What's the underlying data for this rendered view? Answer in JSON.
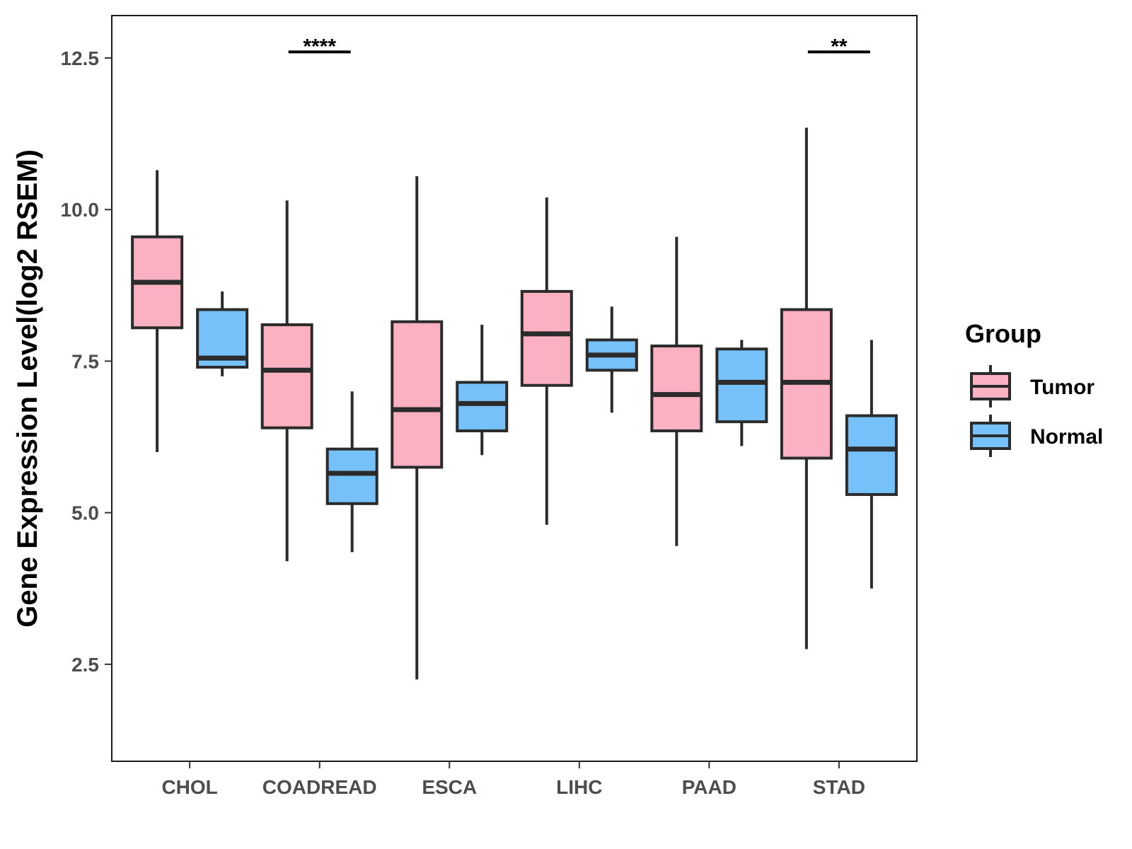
{
  "chart_data": {
    "type": "boxplot",
    "title": "",
    "xlabel": "",
    "ylabel": "Gene Expression Level(log2 RSEM)",
    "ylim": [
      0.9,
      13.2
    ],
    "yticks": [
      2.5,
      5.0,
      7.5,
      10.0,
      12.5
    ],
    "ytick_labels": [
      "2.5",
      "5.0",
      "7.5",
      "10.0",
      "12.5"
    ],
    "grid": false,
    "legend": {
      "title": "Group",
      "position": "right",
      "entries": [
        {
          "name": "Tumor",
          "color": "#FBB1C2"
        },
        {
          "name": "Normal",
          "color": "#76C1F9"
        }
      ]
    },
    "categories": [
      "CHOL",
      "COADREAD",
      "ESCA",
      "LIHC",
      "PAAD",
      "STAD"
    ],
    "series": [
      {
        "name": "Tumor",
        "color": "#FBB1C2",
        "boxes": [
          {
            "min": 6.0,
            "q1": 8.05,
            "median": 8.8,
            "q3": 9.55,
            "max": 10.65
          },
          {
            "min": 4.2,
            "q1": 6.4,
            "median": 7.35,
            "q3": 8.1,
            "max": 10.15
          },
          {
            "min": 2.25,
            "q1": 5.75,
            "median": 6.7,
            "q3": 8.15,
            "max": 10.55
          },
          {
            "min": 4.8,
            "q1": 7.1,
            "median": 7.95,
            "q3": 8.65,
            "max": 10.2
          },
          {
            "min": 4.45,
            "q1": 6.35,
            "median": 6.95,
            "q3": 7.75,
            "max": 9.55
          },
          {
            "min": 2.75,
            "q1": 5.9,
            "median": 7.15,
            "q3": 8.35,
            "max": 11.35
          }
        ]
      },
      {
        "name": "Normal",
        "color": "#76C1F9",
        "boxes": [
          {
            "min": 7.25,
            "q1": 7.4,
            "median": 7.55,
            "q3": 8.35,
            "max": 8.65
          },
          {
            "min": 4.35,
            "q1": 5.15,
            "median": 5.65,
            "q3": 6.05,
            "max": 7.0
          },
          {
            "min": 5.95,
            "q1": 6.35,
            "median": 6.8,
            "q3": 7.15,
            "max": 8.1
          },
          {
            "min": 6.65,
            "q1": 7.35,
            "median": 7.6,
            "q3": 7.85,
            "max": 8.4
          },
          {
            "min": 6.1,
            "q1": 6.5,
            "median": 7.15,
            "q3": 7.7,
            "max": 7.85
          },
          {
            "min": 3.75,
            "q1": 5.3,
            "median": 6.05,
            "q3": 6.6,
            "max": 7.85
          }
        ]
      }
    ],
    "annotations": [
      {
        "category": "COADREAD",
        "label": "****",
        "y": 12.6
      },
      {
        "category": "STAD",
        "label": "**",
        "y": 12.6
      }
    ]
  }
}
